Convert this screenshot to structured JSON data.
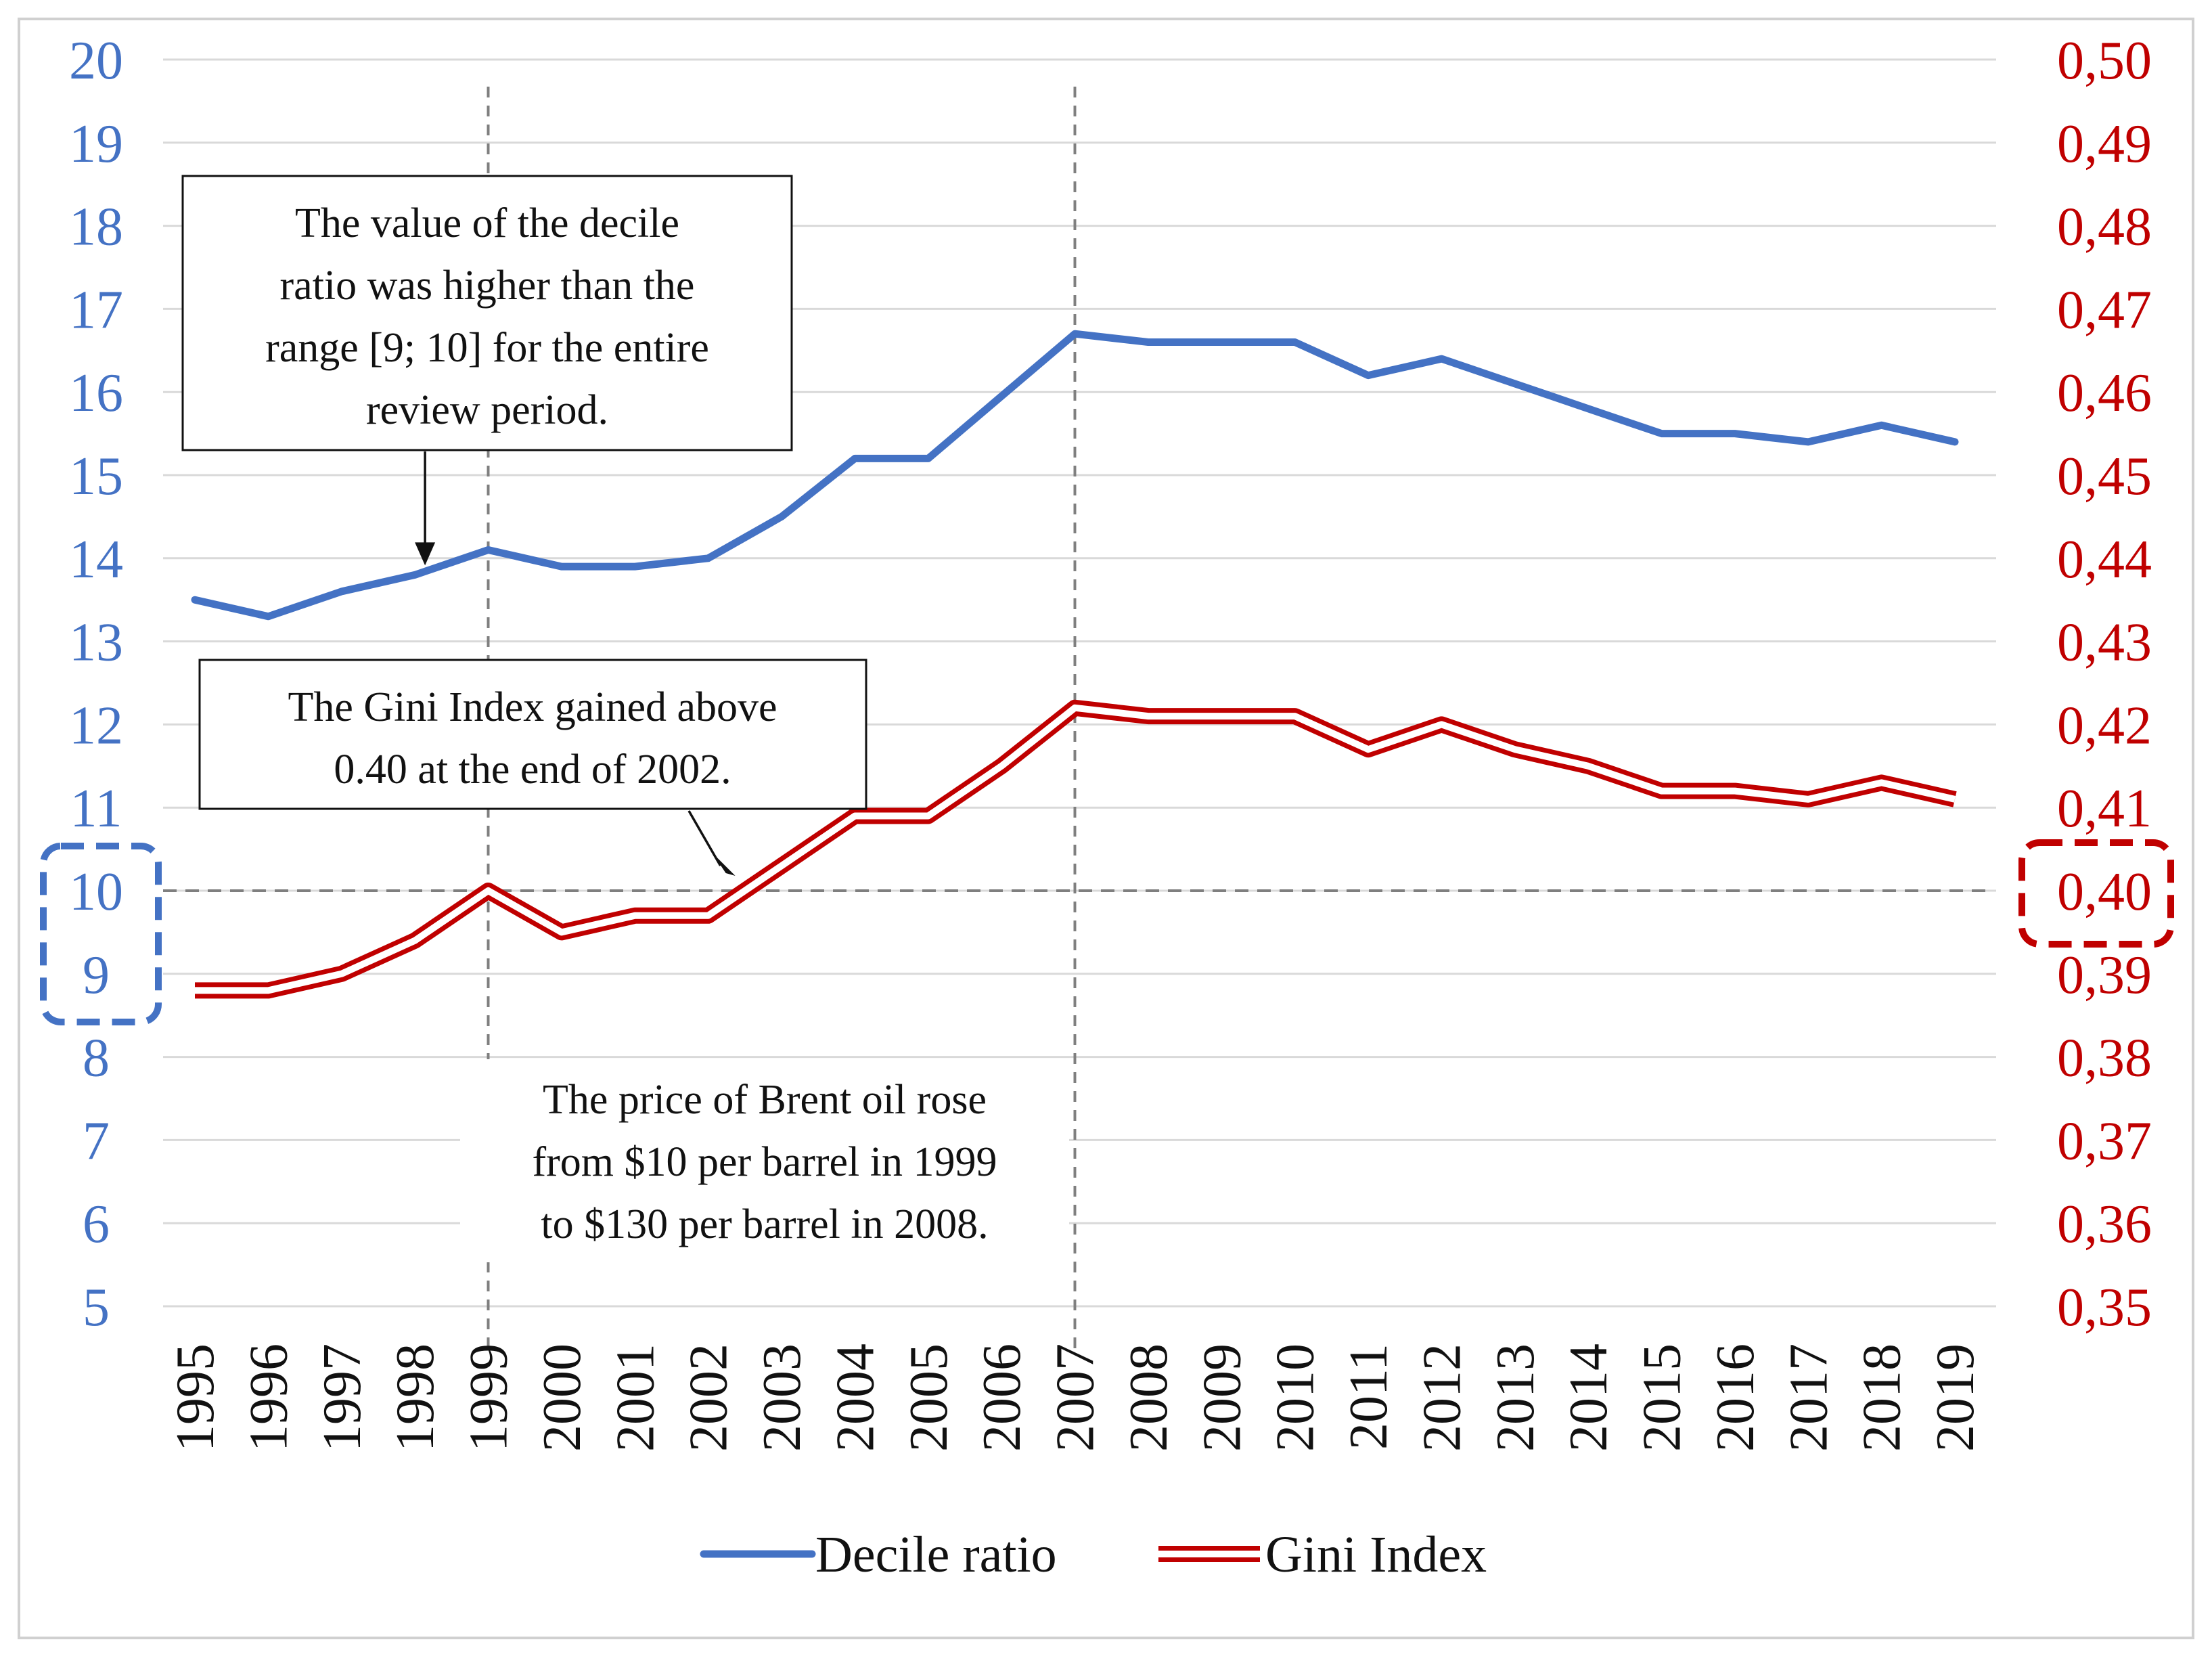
{
  "chart_data": {
    "type": "line",
    "title": "",
    "categories": [
      "1995",
      "1996",
      "1997",
      "1998",
      "1999",
      "2000",
      "2001",
      "2002",
      "2003",
      "2004",
      "2005",
      "2006",
      "2007",
      "2008",
      "2009",
      "2010",
      "2011",
      "2012",
      "2013",
      "2014",
      "2015",
      "2016",
      "2017",
      "2018",
      "2019"
    ],
    "series": [
      {
        "name": "Decile ratio",
        "axis": "left",
        "color": "#4472C4",
        "values": [
          13.5,
          13.3,
          13.6,
          13.8,
          14.1,
          13.9,
          13.9,
          14.0,
          14.5,
          15.2,
          15.2,
          15.95,
          16.7,
          16.6,
          16.6,
          16.6,
          16.2,
          16.4,
          16.1,
          15.8,
          15.5,
          15.5,
          15.4,
          15.6,
          15.4
        ]
      },
      {
        "name": "Gini Index",
        "axis": "right",
        "color": "#C00000",
        "values": [
          0.388,
          0.388,
          0.39,
          0.394,
          0.4,
          0.395,
          0.397,
          0.397,
          0.403,
          0.409,
          0.409,
          0.415,
          0.422,
          0.421,
          0.421,
          0.421,
          0.417,
          0.42,
          0.417,
          0.415,
          0.412,
          0.412,
          0.411,
          0.413,
          0.411
        ]
      }
    ],
    "left_axis": {
      "ylim": [
        5,
        20
      ],
      "ticks": [
        "20",
        "19",
        "18",
        "17",
        "16",
        "15",
        "14",
        "13",
        "12",
        "11",
        "10",
        "9",
        "8",
        "7",
        "6",
        "5"
      ]
    },
    "right_axis": {
      "ylim": [
        0.35,
        0.5
      ],
      "ticks": [
        "0,50",
        "0,49",
        "0,48",
        "0,47",
        "0,46",
        "0,45",
        "0,44",
        "0,43",
        "0,42",
        "0,41",
        "0,40",
        "0,39",
        "0,38",
        "0,37",
        "0,36",
        "0,35"
      ]
    },
    "grid": true,
    "legend_position": "bottom",
    "reference_line_value": 10,
    "vertical_markers": [
      "1999",
      "2007"
    ],
    "highlighted_ticks": {
      "left": [
        "10",
        "9"
      ],
      "right": [
        "0,40"
      ]
    },
    "annotations": [
      {
        "id": "decile",
        "lines": [
          "The value of the decile",
          "ratio was higher than the",
          "range [9; 10] for the entire",
          "review period."
        ],
        "points_to": "1998"
      },
      {
        "id": "gini",
        "lines": [
          "The Gini Index gained above",
          "0.40 at the end of 2002."
        ],
        "points_to": "2002"
      },
      {
        "id": "brent",
        "lines": [
          "The price of Brent oil rose",
          "from $10 per barrel in 1999",
          "to $130 per barrel in 2008."
        ],
        "points_to": ""
      }
    ]
  }
}
